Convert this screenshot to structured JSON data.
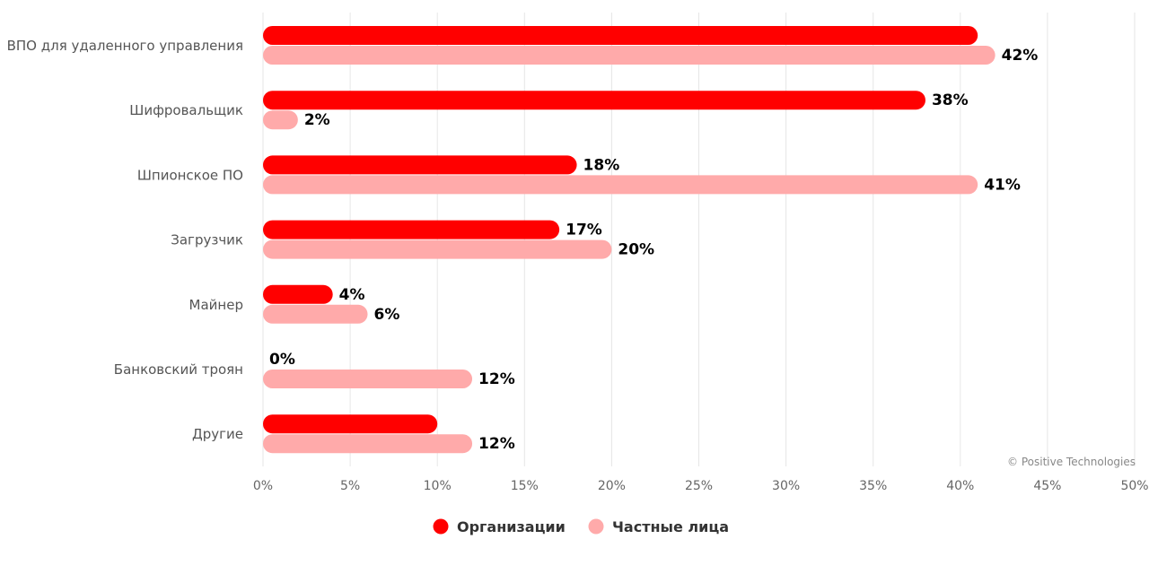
{
  "chart_data": {
    "type": "bar",
    "orientation": "horizontal",
    "categories": [
      "ВПО для удаленного управления",
      "Шифровальщик",
      "Шпионское ПО",
      "Загрузчик",
      "Майнер",
      "Банковский троян",
      "Другие"
    ],
    "series": [
      {
        "name": "Организации",
        "color": "#ff0000",
        "values": [
          41,
          38,
          18,
          17,
          4,
          0,
          10
        ],
        "labels": [
          "",
          "38%",
          "18%",
          "17%",
          "4%",
          "0%",
          ""
        ]
      },
      {
        "name": "Частные лица",
        "color": "#ffaaaa",
        "values": [
          42,
          2,
          41,
          20,
          6,
          12,
          12
        ],
        "labels": [
          "42%",
          "2%",
          "41%",
          "20%",
          "6%",
          "12%",
          "12%"
        ]
      }
    ],
    "x_ticks": [
      "0%",
      "5%",
      "10%",
      "15%",
      "20%",
      "25%",
      "30%",
      "35%",
      "40%",
      "45%",
      "50%"
    ],
    "xlim": [
      0,
      50
    ],
    "grid": true,
    "legend_position": "bottom",
    "credit": "© Positive Technologies"
  }
}
